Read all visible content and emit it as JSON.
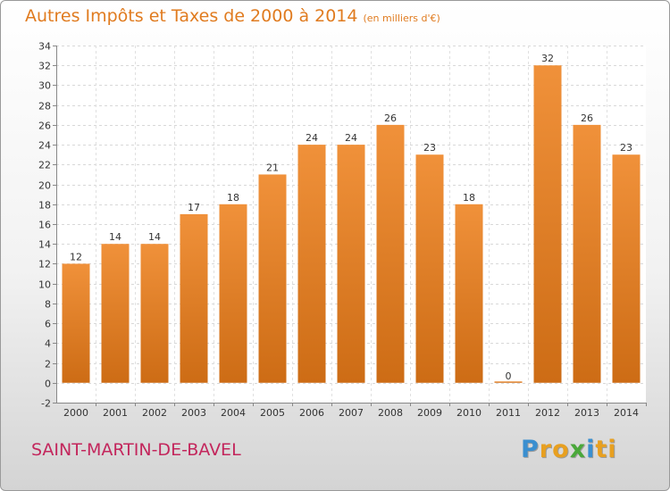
{
  "chart_data": {
    "type": "bar",
    "title": "Autres Impôts et Taxes de 2000 à 2014",
    "unit_note": "(en milliers d'€)",
    "categories": [
      "2000",
      "2001",
      "2002",
      "2003",
      "2004",
      "2005",
      "2006",
      "2007",
      "2008",
      "2009",
      "2010",
      "2011",
      "2012",
      "2013",
      "2014"
    ],
    "values": [
      12,
      14,
      14,
      17,
      18,
      21,
      24,
      24,
      26,
      23,
      18,
      0,
      32,
      26,
      23
    ],
    "ylim": [
      -2,
      34
    ],
    "yticks": [
      -2,
      0,
      2,
      4,
      6,
      8,
      10,
      12,
      14,
      16,
      18,
      20,
      22,
      24,
      26,
      28,
      30,
      32,
      34
    ],
    "grid": true,
    "bar_color": "#f0913a",
    "bar_color_dark": "#cd6c15",
    "title_color": "#e07b1f"
  },
  "location": "SAINT-MARTIN-DE-BAVEL",
  "logo": {
    "letters": [
      "P",
      "r",
      "o",
      "x",
      "i",
      "t",
      "i"
    ],
    "colors": [
      "#3a8fd0",
      "#e8a020",
      "#e8a020",
      "#4aa83a",
      "#3a8fd0",
      "#e8a020",
      "#e8a020"
    ]
  }
}
